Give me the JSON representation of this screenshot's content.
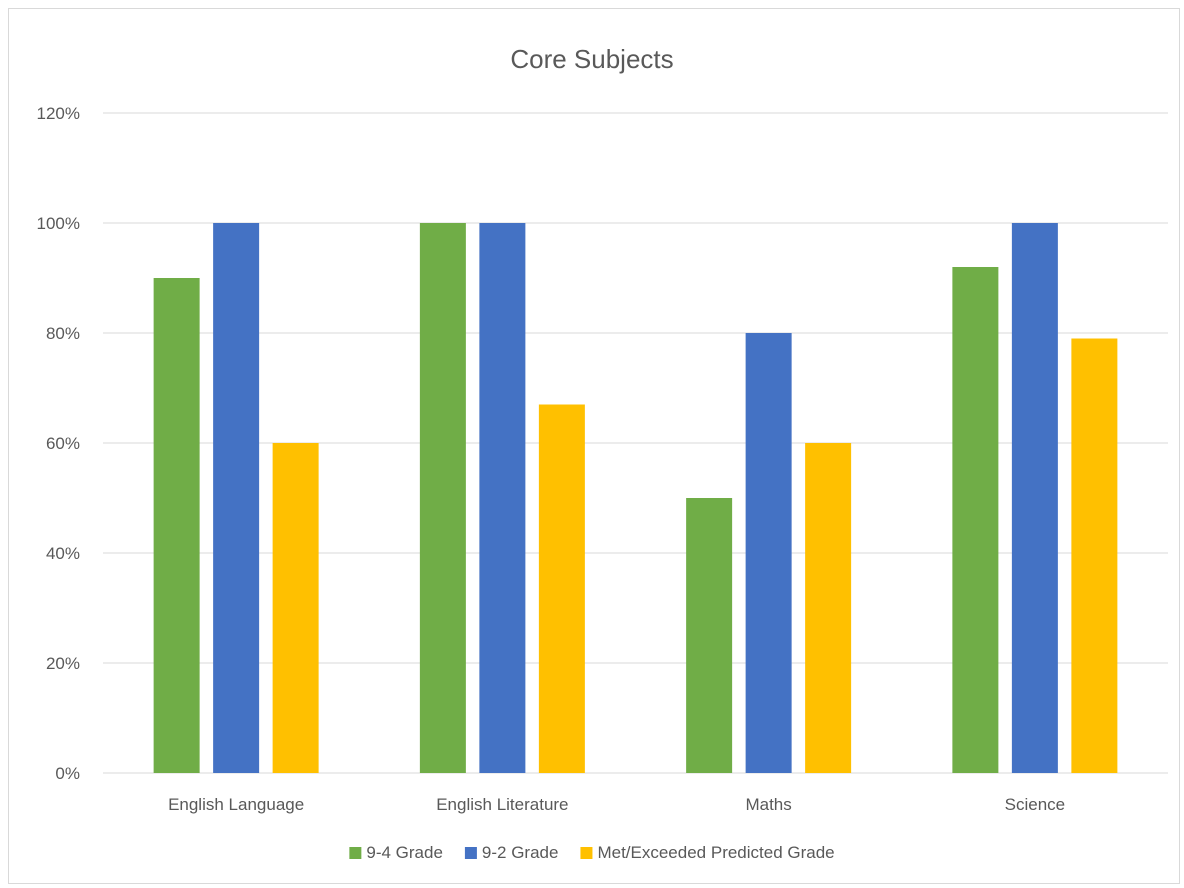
{
  "chart_data": {
    "type": "bar",
    "title": "Core Subjects",
    "xlabel": "",
    "ylabel": "",
    "categories": [
      "English Language",
      "English Literature",
      "Maths",
      "Science"
    ],
    "series": [
      {
        "name": "9-4 Grade",
        "values": [
          90,
          100,
          50,
          92
        ],
        "color": "#70ad47"
      },
      {
        "name": "9-2 Grade",
        "values": [
          100,
          100,
          80,
          100
        ],
        "color": "#4472c4"
      },
      {
        "name": "Met/Exceeded Predicted Grade",
        "values": [
          60,
          67,
          60,
          79
        ],
        "color": "#ffc000"
      }
    ],
    "ylim": [
      0,
      120
    ],
    "yticks": [
      0,
      20,
      40,
      60,
      80,
      100,
      120
    ],
    "ytick_labels": [
      "0%",
      "20%",
      "40%",
      "60%",
      "80%",
      "100%",
      "120%"
    ],
    "grid": true,
    "legend_position": "bottom"
  }
}
